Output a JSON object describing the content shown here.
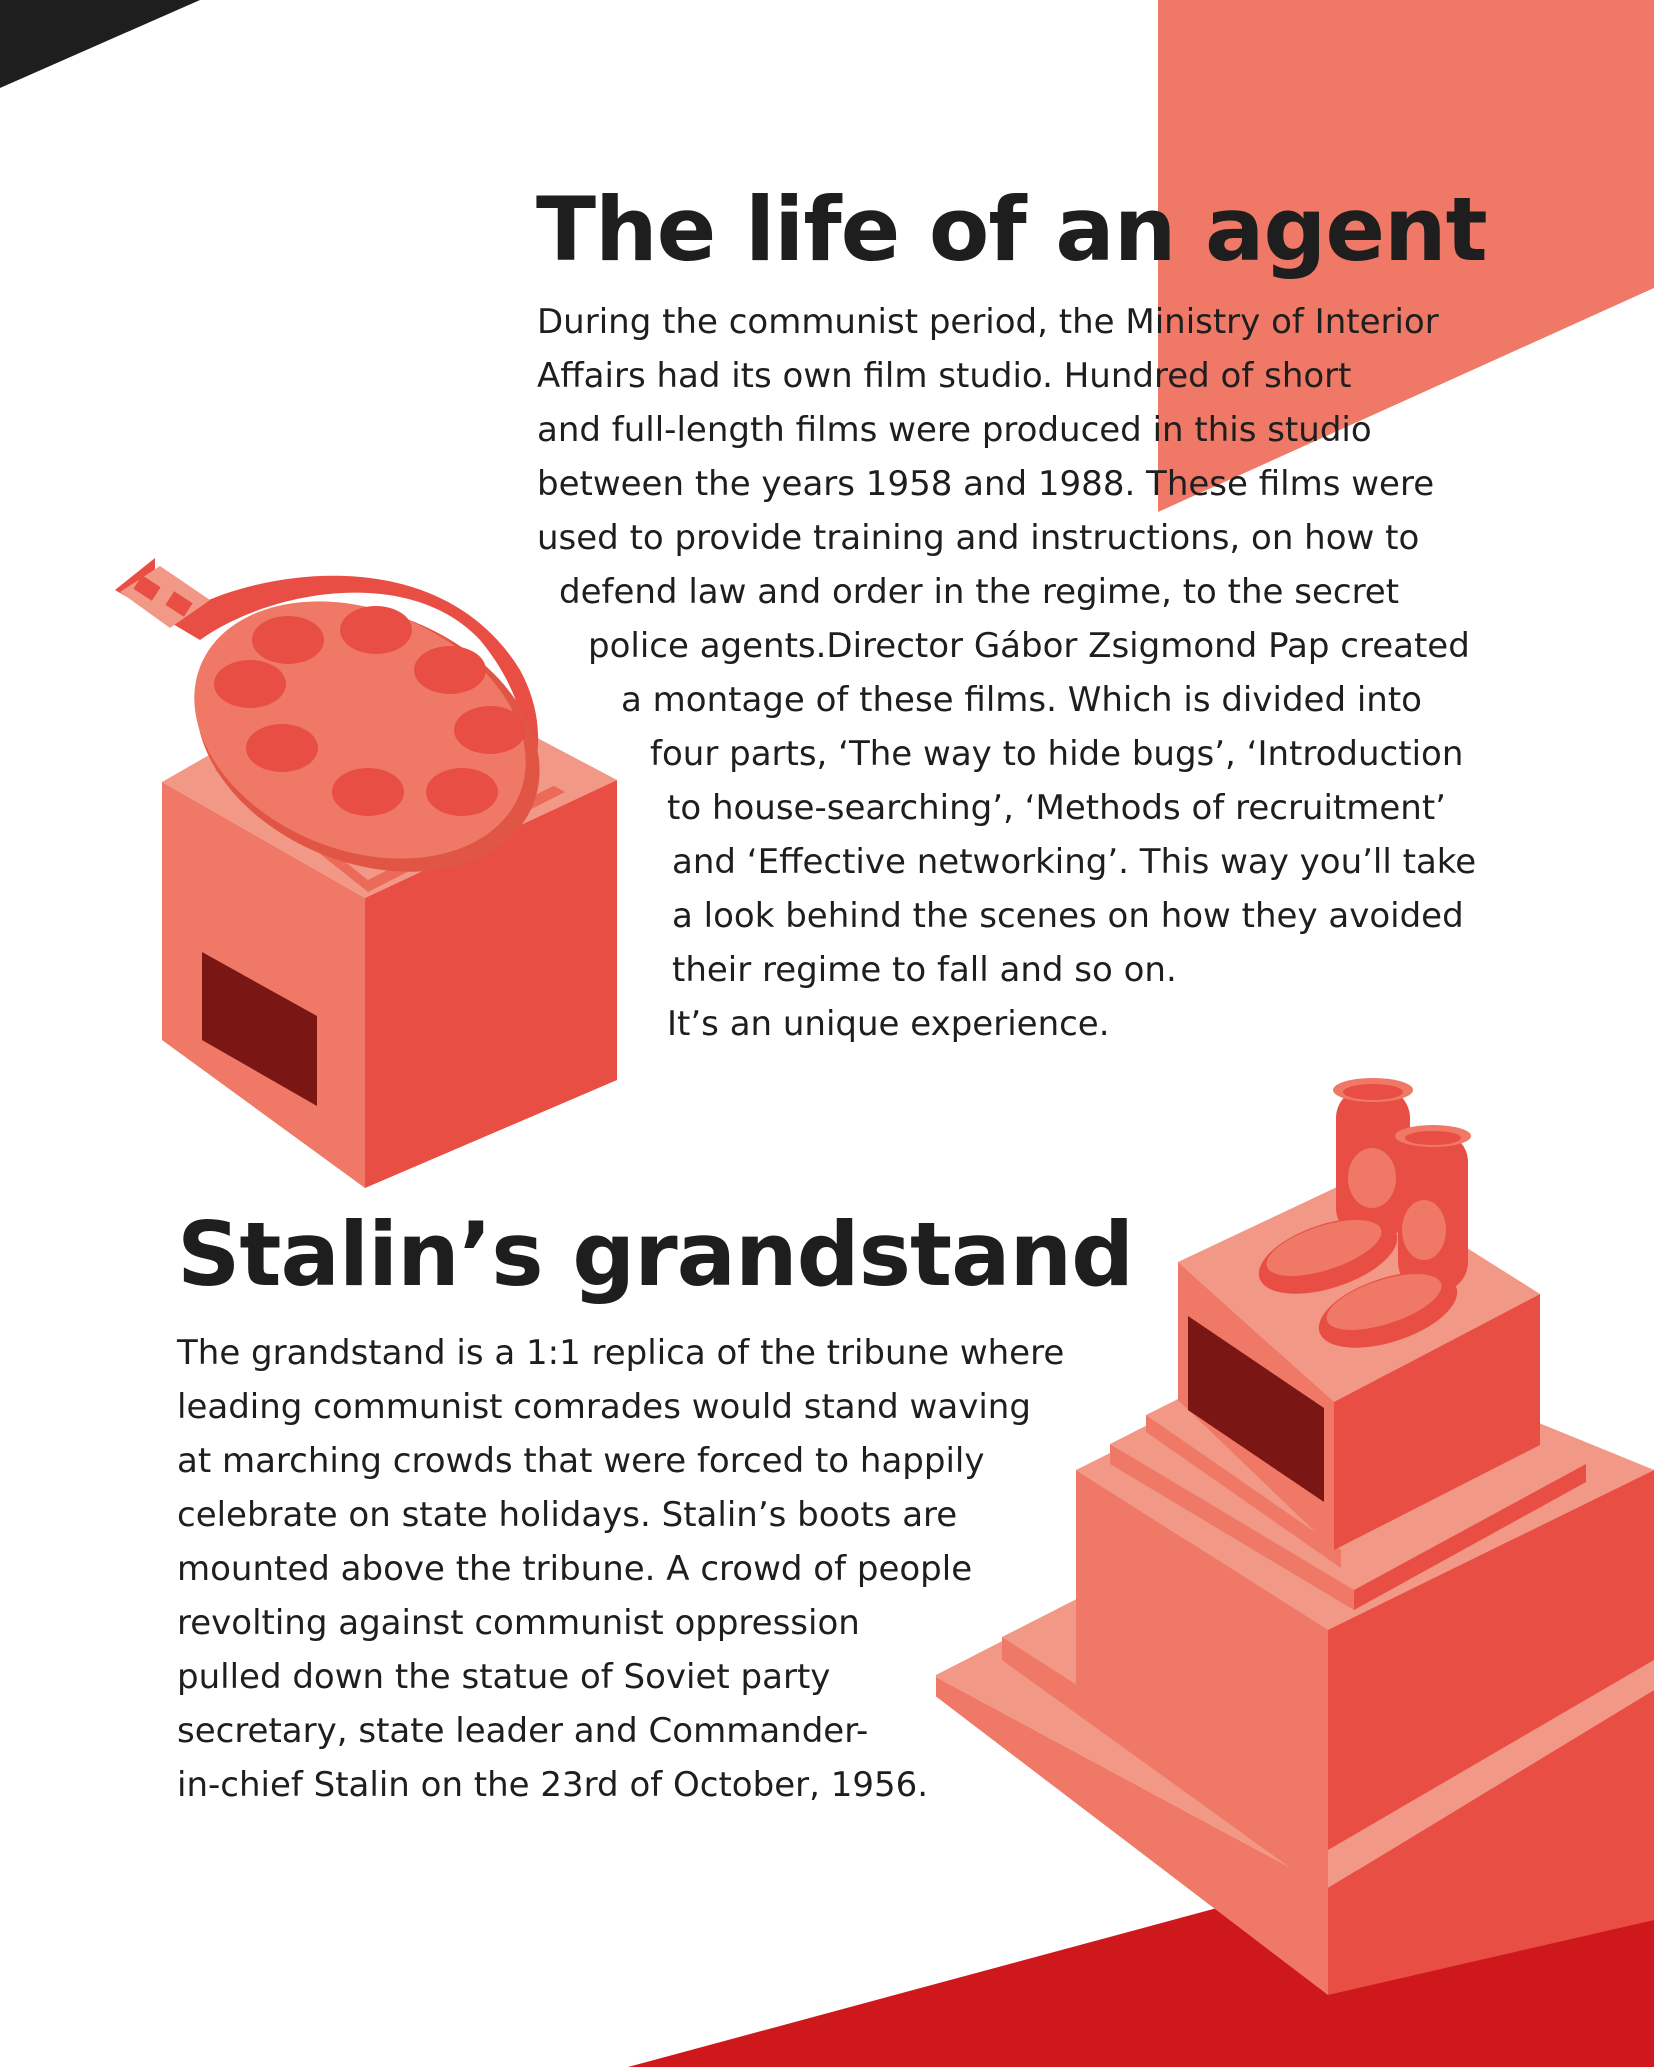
{
  "colors": {
    "background": "#ffffff",
    "corner_triangle": "#1e1e1e",
    "accent_salmon": "#ef7866",
    "accent_red": "#cf181c",
    "text": "#1e1e1e"
  },
  "section1": {
    "title": "The life of an agent",
    "lines": [
      "During the communist period, the Ministry of Interior",
      "Affairs had its own film studio. Hundred of short",
      "and full-length films were produced in this studio",
      "between the years 1958 and 1988. These films were",
      "used to provide training and instructions, on how to",
      "defend law and order in the regime, to the secret",
      "police agents.Director Gábor Zsigmond Pap created",
      "a montage of these films. Which is divided into",
      "four parts, ‘The way to hide bugs’, ‘Introduction",
      "to house-searching’, ‘Methods of recruitment’",
      "and ‘Effective networking’. This way you’ll take",
      "a look behind the scenes on how they avoided",
      "their regime to fall and so on.",
      "It’s an unique experience."
    ]
  },
  "section2": {
    "title": "Stalin’s grandstand",
    "lines": [
      "The grandstand is a 1:1 replica of the tribune where",
      "leading communist comrades would stand waving",
      "at marching crowds that were forced to happily",
      "celebrate on state holidays. Stalin’s boots are",
      "mounted above the tribune. A crowd of people",
      "revolting against communist oppression",
      "pulled down the statue of Soviet party",
      "secretary, state leader and Commander-",
      "in-chief Stalin on the 23rd of October, 1956."
    ]
  },
  "illustrations": {
    "film_reel": "film-reel-on-pedestal",
    "boots": "stalin-boots-on-grandstand"
  }
}
